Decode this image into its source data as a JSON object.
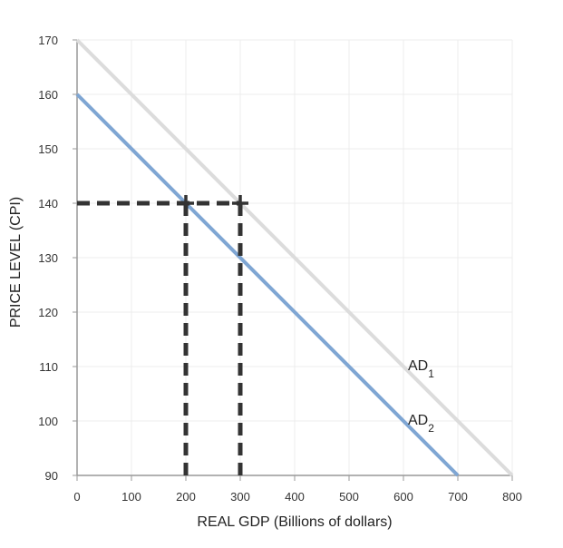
{
  "chart_data": {
    "type": "line",
    "xlabel": "REAL GDP (Billions of dollars)",
    "ylabel": "PRICE LEVEL (CPI)",
    "xlim": [
      0,
      800
    ],
    "ylim": [
      90,
      170
    ],
    "x_ticks": [
      0,
      100,
      200,
      300,
      400,
      500,
      600,
      700,
      800
    ],
    "y_ticks": [
      90,
      100,
      110,
      120,
      130,
      140,
      150,
      160,
      170
    ],
    "grid": true,
    "series": [
      {
        "name": "AD1",
        "label_main": "AD",
        "label_sub": "1",
        "color": "#dcdcdc",
        "points": [
          [
            0,
            170
          ],
          [
            800,
            90
          ]
        ]
      },
      {
        "name": "AD2",
        "label_main": "AD",
        "label_sub": "2",
        "color": "#7fa6d3",
        "points": [
          [
            0,
            160
          ],
          [
            700,
            90
          ]
        ]
      }
    ],
    "markers": [
      {
        "x": 200,
        "y": 140
      },
      {
        "x": 300,
        "y": 140
      }
    ],
    "dashed_lines": [
      {
        "from": [
          0,
          140
        ],
        "to": [
          300,
          140
        ]
      },
      {
        "from": [
          200,
          90
        ],
        "to": [
          200,
          140
        ]
      },
      {
        "from": [
          300,
          90
        ],
        "to": [
          300,
          140
        ]
      }
    ],
    "dashed_color": "#333333"
  }
}
